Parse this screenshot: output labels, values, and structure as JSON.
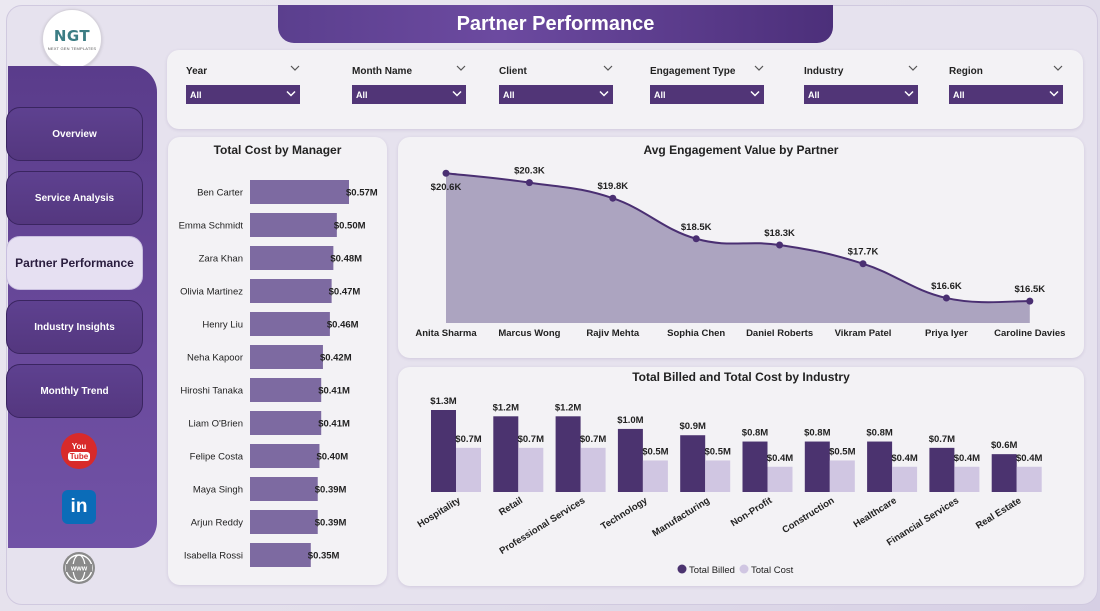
{
  "logo": {
    "mark": "NGT",
    "sub": "NEXT GEN TEMPLATES"
  },
  "page_title": "Partner Performance",
  "nav": [
    {
      "label": "Overview"
    },
    {
      "label": "Service Analysis"
    },
    {
      "label": "Partner Performance"
    },
    {
      "label": "Industry Insights"
    },
    {
      "label": "Monthly Trend"
    }
  ],
  "social": {
    "youtube_top": "You",
    "youtube_bottom": "Tube",
    "linkedin": "in"
  },
  "slicers": [
    {
      "label": "Year",
      "value": "All"
    },
    {
      "label": "Month Name",
      "value": "All"
    },
    {
      "label": "Client",
      "value": "All"
    },
    {
      "label": "Engagement Type",
      "value": "All"
    },
    {
      "label": "Industry",
      "value": "All"
    },
    {
      "label": "Region",
      "value": "All"
    }
  ],
  "colors": {
    "bar_manager": "#7d6aa1",
    "area_fill": "#aca4c0",
    "line": "#4a2f72",
    "billed": "#4b336f",
    "cost": "#d0c6e2",
    "accent": "#513577"
  },
  "chart_data": [
    {
      "type": "bar",
      "orientation": "horizontal",
      "title": "Total Cost by Manager",
      "categories": [
        "Ben Carter",
        "Emma Schmidt",
        "Zara Khan",
        "Olivia Martinez",
        "Henry Liu",
        "Neha Kapoor",
        "Hiroshi Tanaka",
        "Liam O'Brien",
        "Felipe Costa",
        "Maya Singh",
        "Arjun Reddy",
        "Isabella Rossi"
      ],
      "values": [
        0.57,
        0.5,
        0.48,
        0.47,
        0.46,
        0.42,
        0.41,
        0.41,
        0.4,
        0.39,
        0.39,
        0.35
      ],
      "labels": [
        "$0.57M",
        "$0.50M",
        "$0.48M",
        "$0.47M",
        "$0.46M",
        "$0.42M",
        "$0.41M",
        "$0.41M",
        "$0.40M",
        "$0.39M",
        "$0.39M",
        "$0.35M"
      ],
      "xlim": [
        0,
        0.57
      ]
    },
    {
      "type": "area",
      "title": "Avg Engagement Value by Partner",
      "categories": [
        "Anita Sharma",
        "Marcus Wong",
        "Rajiv Mehta",
        "Sophia Chen",
        "Daniel Roberts",
        "Vikram Patel",
        "Priya Iyer",
        "Caroline Davies"
      ],
      "values": [
        20.6,
        20.3,
        19.8,
        18.5,
        18.3,
        17.7,
        16.6,
        16.5
      ],
      "labels": [
        "$20.6K",
        "$20.3K",
        "$19.8K",
        "$18.5K",
        "$18.3K",
        "$17.7K",
        "$16.6K",
        "$16.5K"
      ],
      "ylim": [
        15.8,
        20.8
      ]
    },
    {
      "type": "bar",
      "title": "Total Billed and Total Cost by Industry",
      "categories": [
        "Hospitality",
        "Retail",
        "Professional Services",
        "Technology",
        "Manufacturing",
        "Non-Profit",
        "Construction",
        "Healthcare",
        "Financial Services",
        "Real Estate"
      ],
      "series": [
        {
          "name": "Total Billed",
          "values": [
            1.3,
            1.2,
            1.2,
            1.0,
            0.9,
            0.8,
            0.8,
            0.8,
            0.7,
            0.6
          ],
          "labels": [
            "$1.3M",
            "$1.2M",
            "$1.2M",
            "$1.0M",
            "$0.9M",
            "$0.8M",
            "$0.8M",
            "$0.8M",
            "$0.7M",
            "$0.6M"
          ]
        },
        {
          "name": "Total Cost",
          "values": [
            0.7,
            0.7,
            0.7,
            0.5,
            0.5,
            0.4,
            0.5,
            0.4,
            0.4,
            0.4
          ],
          "labels": [
            "$0.7M",
            "$0.7M",
            "$0.7M",
            "$0.5M",
            "$0.5M",
            "$0.4M",
            "$0.5M",
            "$0.4M",
            "$0.4M",
            "$0.4M"
          ]
        }
      ],
      "legend": "bottom-center",
      "ylim": [
        0,
        1.3
      ]
    }
  ]
}
